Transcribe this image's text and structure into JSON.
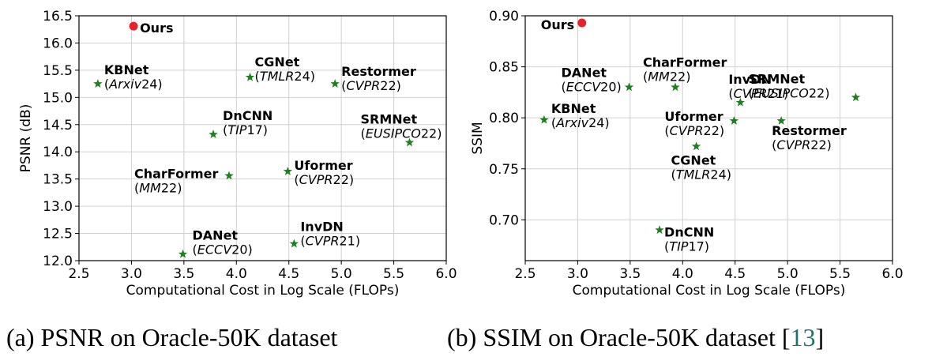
{
  "chart_data": [
    {
      "type": "scatter",
      "xlabel": "Computational Cost in Log Scale (FLOPs)",
      "ylabel": "PSNR (dB)",
      "xlim": [
        2.5,
        6.0
      ],
      "ylim": [
        12.0,
        16.5
      ],
      "xticks": [
        "2.5",
        "3.0",
        "3.5",
        "4.0",
        "4.5",
        "5.0",
        "5.5",
        "6.0"
      ],
      "yticks": [
        "12.0",
        "12.5",
        "13.0",
        "13.5",
        "14.0",
        "14.5",
        "15.0",
        "15.5",
        "16.0",
        "16.5"
      ],
      "grid": true,
      "points": [
        {
          "name": "Ours",
          "x": 3.02,
          "y": 16.31,
          "marker": "circle",
          "color": "#e8212b"
        },
        {
          "name": "KBNet",
          "venue": "Arxiv",
          "year": "24",
          "x": 2.68,
          "y": 15.25,
          "marker": "star",
          "color": "#1e7f1e"
        },
        {
          "name": "CGNet",
          "venue": "TMLR",
          "year": "24",
          "x": 4.13,
          "y": 15.37,
          "marker": "star",
          "color": "#1e7f1e"
        },
        {
          "name": "Restormer",
          "venue": "CVPR",
          "year": "22",
          "x": 4.94,
          "y": 15.25,
          "marker": "star",
          "color": "#1e7f1e"
        },
        {
          "name": "DnCNN",
          "venue": "TIP",
          "year": "17",
          "x": 3.78,
          "y": 14.32,
          "marker": "star",
          "color": "#1e7f1e"
        },
        {
          "name": "SRMNet",
          "venue": "EUSIPCO",
          "year": "22",
          "x": 5.65,
          "y": 14.17,
          "marker": "star",
          "color": "#1e7f1e"
        },
        {
          "name": "CharFormer",
          "venue": "MM",
          "year": "22",
          "x": 3.93,
          "y": 13.56,
          "marker": "star",
          "color": "#1e7f1e"
        },
        {
          "name": "Uformer",
          "venue": "CVPR",
          "year": "22",
          "x": 4.49,
          "y": 13.64,
          "marker": "star",
          "color": "#1e7f1e"
        },
        {
          "name": "InvDN",
          "venue": "CVPR",
          "year": "21",
          "x": 4.55,
          "y": 12.31,
          "marker": "star",
          "color": "#1e7f1e"
        },
        {
          "name": "DANet",
          "venue": "ECCV",
          "year": "20",
          "x": 3.49,
          "y": 12.12,
          "marker": "star",
          "color": "#1e7f1e"
        }
      ]
    },
    {
      "type": "scatter",
      "xlabel": "Computational Cost in Log Scale (FLOPs)",
      "ylabel": "SSIM",
      "xlim": [
        2.5,
        6.0
      ],
      "ylim": [
        0.66,
        0.9
      ],
      "xticks": [
        "2.5",
        "3.0",
        "3.5",
        "4.0",
        "4.5",
        "5.0",
        "5.5",
        "6.0"
      ],
      "yticks": [
        "0.70",
        "0.75",
        "0.80",
        "0.85",
        "0.90"
      ],
      "grid": true,
      "points": [
        {
          "name": "Ours",
          "x": 3.04,
          "y": 0.893,
          "marker": "circle",
          "color": "#e8212b"
        },
        {
          "name": "DANet",
          "venue": "ECCV",
          "year": "20",
          "x": 3.49,
          "y": 0.83,
          "marker": "star",
          "color": "#1e7f1e"
        },
        {
          "name": "CharFormer",
          "venue": "MM",
          "year": "22",
          "x": 3.93,
          "y": 0.83,
          "marker": "star",
          "color": "#1e7f1e"
        },
        {
          "name": "InvDN",
          "venue": "CVPR",
          "year": "21",
          "x": 4.55,
          "y": 0.815,
          "marker": "star",
          "color": "#1e7f1e"
        },
        {
          "name": "SRMNet",
          "venue": "EUSIPCO",
          "year": "22",
          "x": 5.65,
          "y": 0.82,
          "marker": "star",
          "color": "#1e7f1e"
        },
        {
          "name": "KBNet",
          "venue": "Arxiv",
          "year": "24",
          "x": 2.68,
          "y": 0.798,
          "marker": "star",
          "color": "#1e7f1e"
        },
        {
          "name": "Uformer",
          "venue": "CVPR",
          "year": "22",
          "x": 4.49,
          "y": 0.797,
          "marker": "star",
          "color": "#1e7f1e"
        },
        {
          "name": "Restormer",
          "venue": "CVPR",
          "year": "22",
          "x": 4.94,
          "y": 0.797,
          "marker": "star",
          "color": "#1e7f1e"
        },
        {
          "name": "CGNet",
          "venue": "TMLR",
          "year": "24",
          "x": 4.13,
          "y": 0.772,
          "marker": "star",
          "color": "#1e7f1e"
        },
        {
          "name": "DnCNN",
          "venue": "TIP",
          "year": "17",
          "x": 3.78,
          "y": 0.69,
          "marker": "star",
          "color": "#1e7f1e"
        }
      ]
    }
  ],
  "captions": {
    "a": "(a)  PSNR  on  Oracle-50K  dataset",
    "b_main": "(b)  SSIM on Oracle-50K dataset [",
    "b_ref": "13",
    "b_end": "]"
  }
}
